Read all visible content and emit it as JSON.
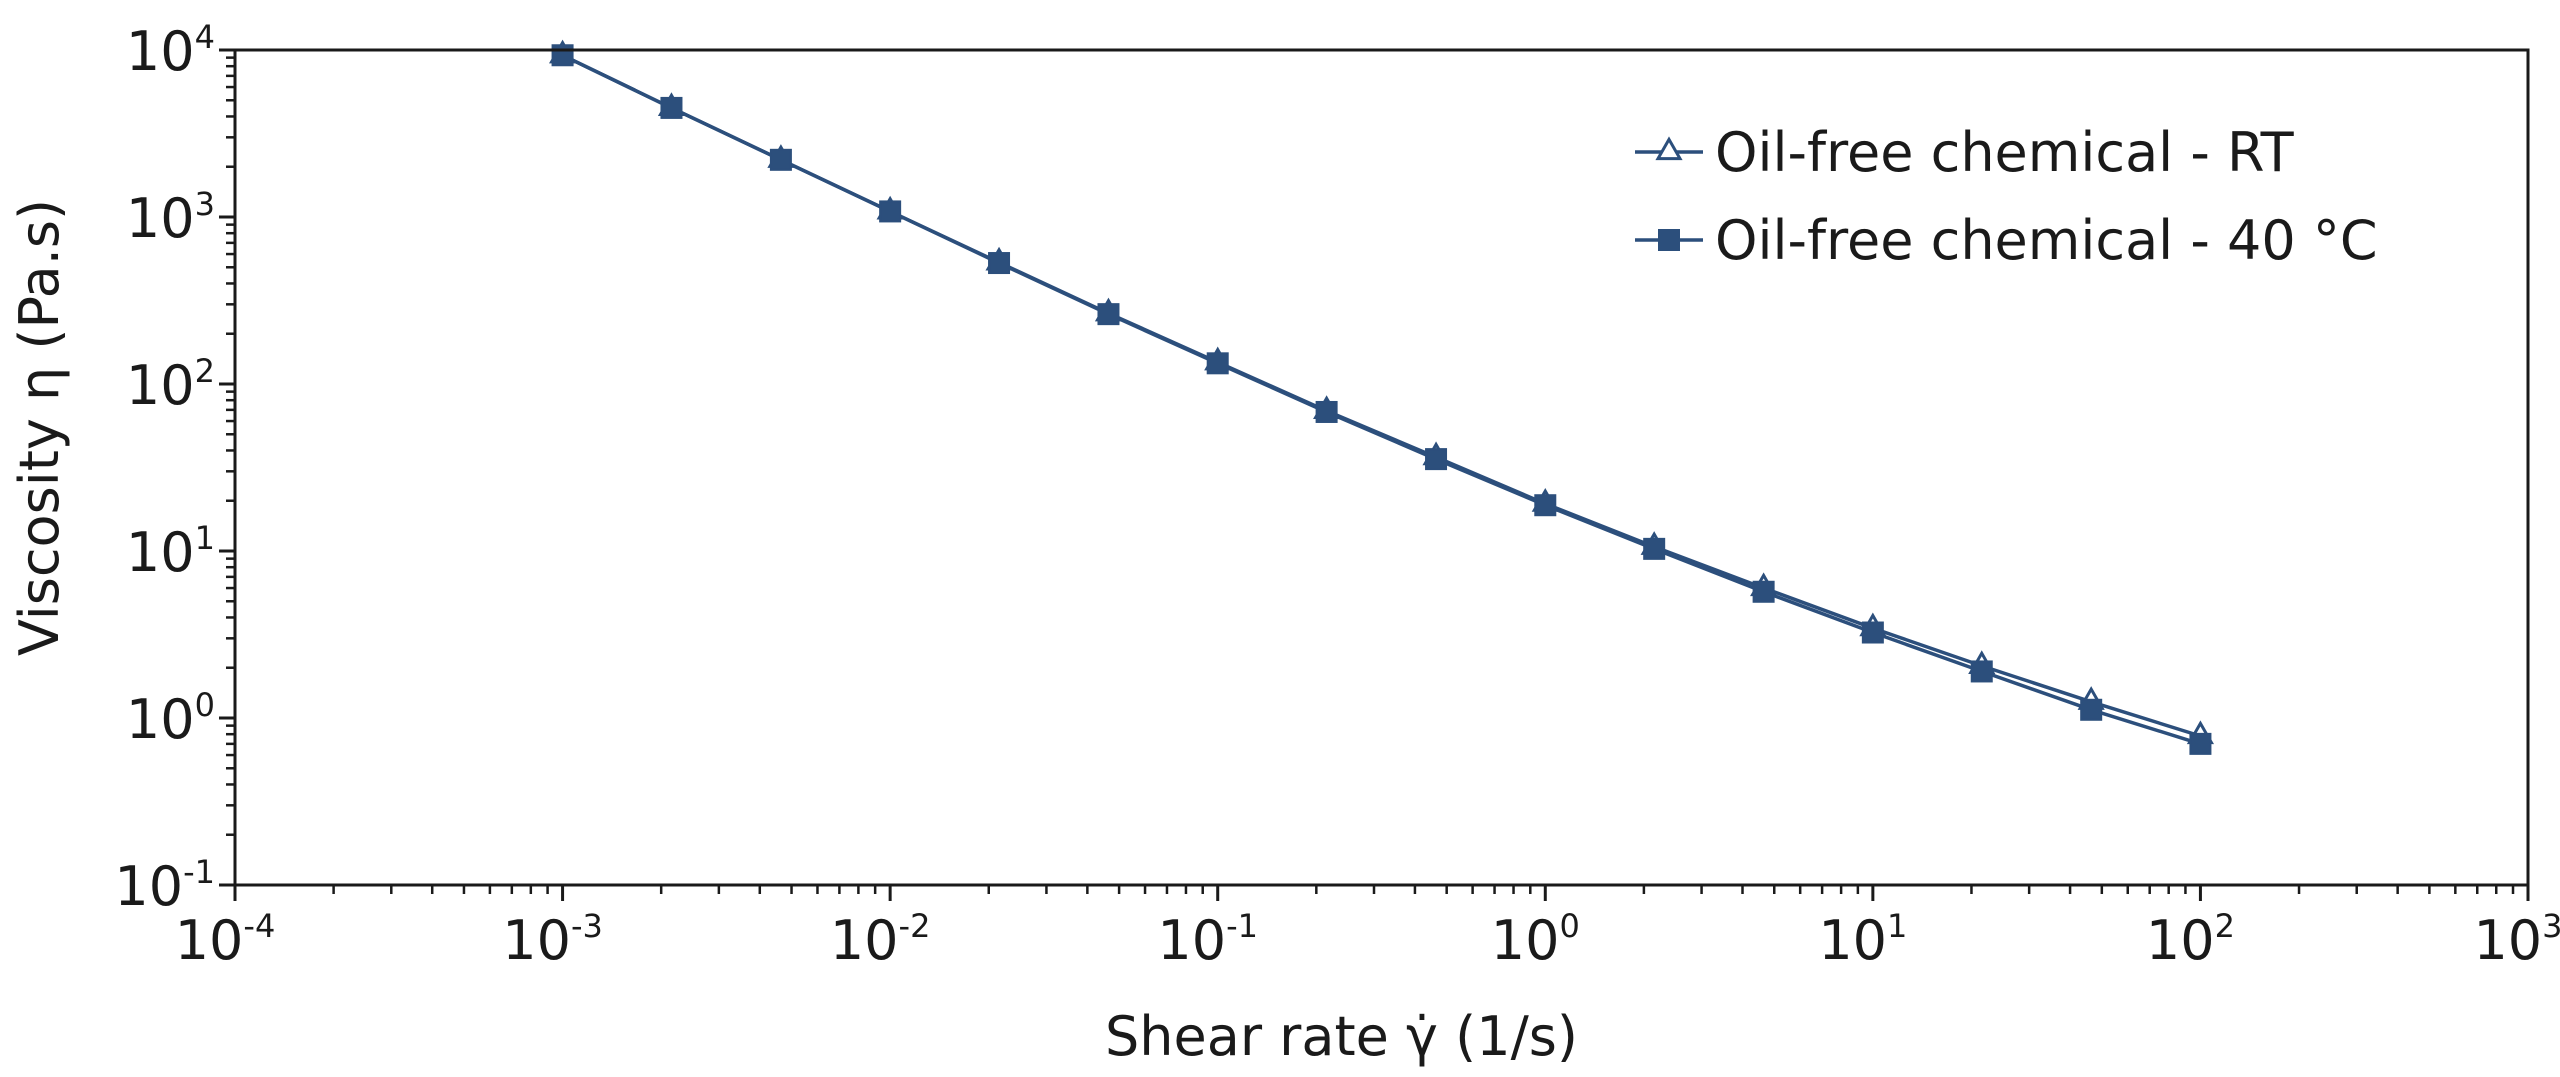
{
  "chart_data": {
    "type": "line",
    "x_scale": "log",
    "y_scale": "log",
    "xlim": [
      0.0001,
      1000
    ],
    "ylim": [
      0.1,
      10000
    ],
    "xlabel": "Shear rate γ̇ (1/s)",
    "ylabel": "Viscosity η (Pa.s)",
    "x_ticks": [
      {
        "base": "10",
        "exp": "-4",
        "value": 0.0001
      },
      {
        "base": "10",
        "exp": "-3",
        "value": 0.001
      },
      {
        "base": "10",
        "exp": "-2",
        "value": 0.01
      },
      {
        "base": "10",
        "exp": "-1",
        "value": 0.1
      },
      {
        "base": "10",
        "exp": "0",
        "value": 1
      },
      {
        "base": "10",
        "exp": "1",
        "value": 10
      },
      {
        "base": "10",
        "exp": "2",
        "value": 100
      },
      {
        "base": "10",
        "exp": "3",
        "value": 1000
      }
    ],
    "y_ticks": [
      {
        "base": "10",
        "exp": "-1",
        "value": 0.1
      },
      {
        "base": "10",
        "exp": "0",
        "value": 1
      },
      {
        "base": "10",
        "exp": "1",
        "value": 10
      },
      {
        "base": "10",
        "exp": "2",
        "value": 100
      },
      {
        "base": "10",
        "exp": "3",
        "value": 1000
      },
      {
        "base": "10",
        "exp": "4",
        "value": 10000
      }
    ],
    "legend_position": "top-right",
    "grid": false,
    "series": [
      {
        "name": "Oil-free chemical - RT",
        "marker": "triangle-open",
        "color": "#2c4f7c",
        "x": [
          0.001,
          0.00215,
          0.00464,
          0.01,
          0.0215,
          0.0464,
          0.1,
          0.215,
          0.464,
          1,
          2.15,
          4.64,
          10,
          21.5,
          46.4,
          100
        ],
        "y": [
          9300,
          4500,
          2200,
          1080,
          535,
          265,
          135,
          69,
          36.5,
          19.2,
          10.6,
          6.0,
          3.45,
          2.05,
          1.25,
          0.78
        ]
      },
      {
        "name": "Oil-free chemical - 40 °C",
        "marker": "square-filled",
        "color": "#2c4f7c",
        "x": [
          0.001,
          0.00215,
          0.00464,
          0.01,
          0.0215,
          0.0464,
          0.1,
          0.215,
          0.464,
          1,
          2.15,
          4.64,
          10,
          21.5,
          46.4,
          100
        ],
        "y": [
          9300,
          4500,
          2200,
          1080,
          530,
          262,
          133,
          68,
          35.5,
          18.8,
          10.3,
          5.7,
          3.25,
          1.9,
          1.12,
          0.7
        ]
      }
    ]
  }
}
